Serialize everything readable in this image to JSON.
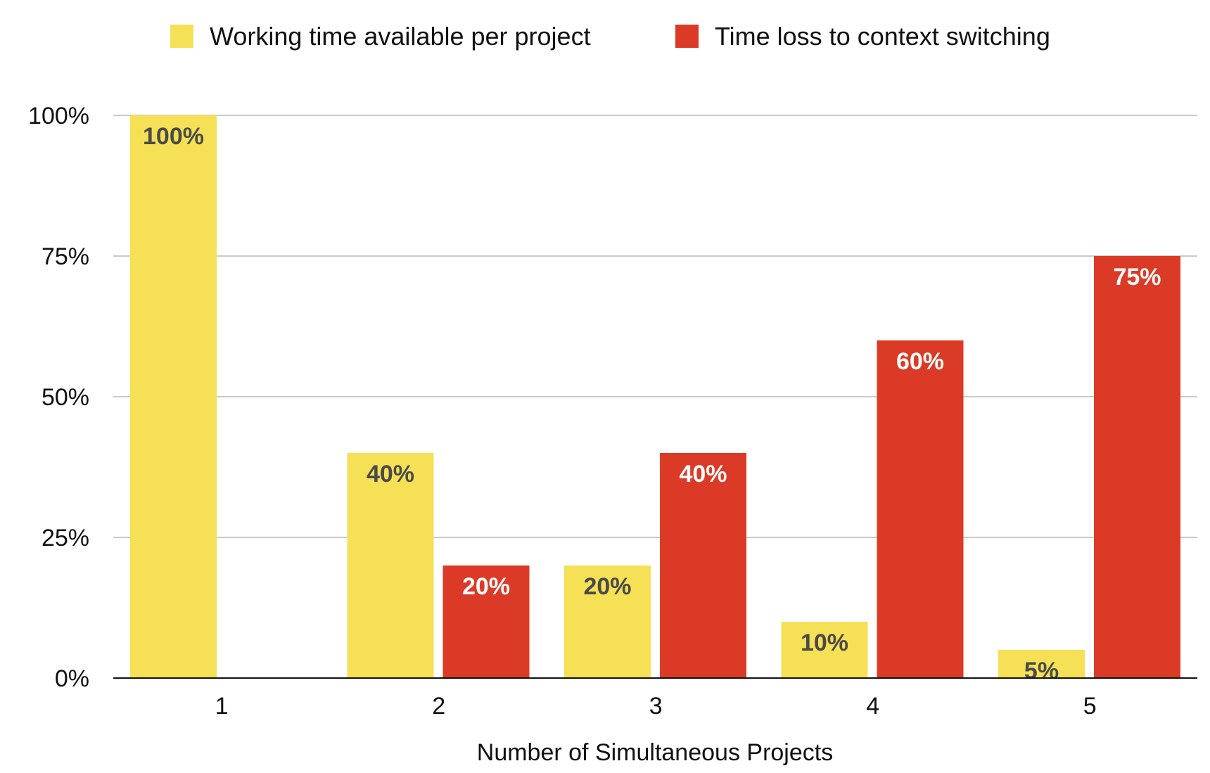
{
  "chart_data": {
    "type": "bar",
    "title": "",
    "xlabel": "Number of Simultaneous Projects",
    "ylabel": "",
    "categories": [
      "1",
      "2",
      "3",
      "4",
      "5"
    ],
    "ylim": [
      0,
      100
    ],
    "yticks": [
      0,
      25,
      50,
      75,
      100
    ],
    "ytick_labels": [
      "0%",
      "25%",
      "50%",
      "75%",
      "100%"
    ],
    "grid": true,
    "legend_position": "top",
    "series": [
      {
        "name": "Working time available per project",
        "color": "#F5E056",
        "label_color": "#4a4a4a",
        "values": [
          100,
          40,
          20,
          10,
          5
        ],
        "labels": [
          "100%",
          "40%",
          "20%",
          "10%",
          "5%"
        ]
      },
      {
        "name": "Time loss to context switching",
        "color": "#DB3B26",
        "label_color": "#ffffff",
        "values": [
          0,
          20,
          40,
          60,
          75
        ],
        "labels": [
          "",
          "20%",
          "40%",
          "60%",
          "75%"
        ]
      }
    ]
  }
}
